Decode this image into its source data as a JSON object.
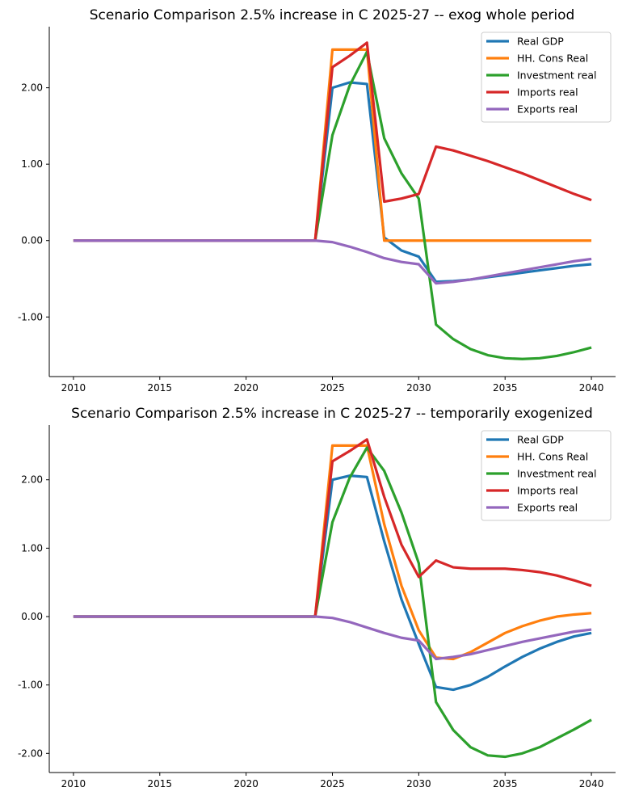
{
  "chart_data": [
    {
      "type": "line",
      "title": "Scenario Comparison 2.5% increase in C 2025-27 -- exog whole period",
      "x": [
        2010,
        2011,
        2012,
        2013,
        2014,
        2015,
        2016,
        2017,
        2018,
        2019,
        2020,
        2021,
        2022,
        2023,
        2024,
        2025,
        2026,
        2027,
        2028,
        2029,
        2030,
        2031,
        2032,
        2033,
        2034,
        2035,
        2036,
        2037,
        2038,
        2039,
        2040
      ],
      "xticks": [
        2010,
        2015,
        2020,
        2025,
        2030,
        2035,
        2040
      ],
      "xtick_labels": [
        "2010",
        "2015",
        "2020",
        "2025",
        "2030",
        "2035",
        "2040"
      ],
      "yticks": [
        -1,
        0,
        1,
        2
      ],
      "ytick_labels": [
        "-1.00",
        "0.00",
        "1.00",
        "2.00"
      ],
      "xlim": [
        2008.6,
        2041.4
      ],
      "ylim": [
        -1.78,
        2.8
      ],
      "grid": false,
      "legend_position": "top-right",
      "series": [
        {
          "name": "Real GDP",
          "color": "#1f77b4",
          "values": [
            0,
            0,
            0,
            0,
            0,
            0,
            0,
            0,
            0,
            0,
            0,
            0,
            0,
            0,
            0,
            2.0,
            2.07,
            2.05,
            0.04,
            -0.13,
            -0.21,
            -0.54,
            -0.53,
            -0.51,
            -0.48,
            -0.45,
            -0.42,
            -0.39,
            -0.36,
            -0.33,
            -0.31
          ]
        },
        {
          "name": "HH. Cons Real",
          "color": "#ff7f0e",
          "values": [
            0,
            0,
            0,
            0,
            0,
            0,
            0,
            0,
            0,
            0,
            0,
            0,
            0,
            0,
            0,
            2.5,
            2.5,
            2.5,
            0,
            0,
            0,
            0,
            0,
            0,
            0,
            0,
            0,
            0,
            0,
            0,
            0
          ]
        },
        {
          "name": "Investment real",
          "color": "#2ca02c",
          "values": [
            0,
            0,
            0,
            0,
            0,
            0,
            0,
            0,
            0,
            0,
            0,
            0,
            0,
            0,
            0,
            1.38,
            2.03,
            2.47,
            1.34,
            0.88,
            0.55,
            -1.1,
            -1.29,
            -1.42,
            -1.5,
            -1.54,
            -1.55,
            -1.54,
            -1.51,
            -1.46,
            -1.4
          ]
        },
        {
          "name": "Imports real",
          "color": "#d62728",
          "values": [
            0,
            0,
            0,
            0,
            0,
            0,
            0,
            0,
            0,
            0,
            0,
            0,
            0,
            0,
            0,
            2.27,
            2.42,
            2.59,
            0.51,
            0.55,
            0.61,
            1.23,
            1.18,
            1.11,
            1.04,
            0.96,
            0.88,
            0.79,
            0.7,
            0.61,
            0.53
          ]
        },
        {
          "name": "Exports real",
          "color": "#9467bd",
          "values": [
            0,
            0,
            0,
            0,
            0,
            0,
            0,
            0,
            0,
            0,
            0,
            0,
            0,
            0,
            0,
            -0.02,
            -0.08,
            -0.15,
            -0.23,
            -0.28,
            -0.31,
            -0.56,
            -0.54,
            -0.51,
            -0.47,
            -0.43,
            -0.39,
            -0.35,
            -0.31,
            -0.27,
            -0.24
          ]
        }
      ]
    },
    {
      "type": "line",
      "title": "Scenario Comparison 2.5% increase in C 2025-27 -- temporarily exogenized",
      "x": [
        2010,
        2011,
        2012,
        2013,
        2014,
        2015,
        2016,
        2017,
        2018,
        2019,
        2020,
        2021,
        2022,
        2023,
        2024,
        2025,
        2026,
        2027,
        2028,
        2029,
        2030,
        2031,
        2032,
        2033,
        2034,
        2035,
        2036,
        2037,
        2038,
        2039,
        2040
      ],
      "xticks": [
        2010,
        2015,
        2020,
        2025,
        2030,
        2035,
        2040
      ],
      "xtick_labels": [
        "2010",
        "2015",
        "2020",
        "2025",
        "2030",
        "2035",
        "2040"
      ],
      "yticks": [
        -2,
        -1,
        0,
        1,
        2
      ],
      "ytick_labels": [
        "-2.00",
        "-1.00",
        "0.00",
        "1.00",
        "2.00"
      ],
      "xlim": [
        2008.6,
        2041.4
      ],
      "ylim": [
        -2.28,
        2.8
      ],
      "grid": false,
      "legend_position": "top-right",
      "series": [
        {
          "name": "Real GDP",
          "color": "#1f77b4",
          "values": [
            0,
            0,
            0,
            0,
            0,
            0,
            0,
            0,
            0,
            0,
            0,
            0,
            0,
            0,
            0,
            2.0,
            2.06,
            2.04,
            1.1,
            0.25,
            -0.4,
            -1.03,
            -1.07,
            -1.0,
            -0.88,
            -0.73,
            -0.59,
            -0.47,
            -0.37,
            -0.29,
            -0.24
          ]
        },
        {
          "name": "HH. Cons Real",
          "color": "#ff7f0e",
          "values": [
            0,
            0,
            0,
            0,
            0,
            0,
            0,
            0,
            0,
            0,
            0,
            0,
            0,
            0,
            0,
            2.5,
            2.5,
            2.5,
            1.35,
            0.45,
            -0.2,
            -0.6,
            -0.62,
            -0.52,
            -0.38,
            -0.24,
            -0.14,
            -0.06,
            0.0,
            0.03,
            0.05
          ]
        },
        {
          "name": "Investment real",
          "color": "#2ca02c",
          "values": [
            0,
            0,
            0,
            0,
            0,
            0,
            0,
            0,
            0,
            0,
            0,
            0,
            0,
            0,
            0,
            1.38,
            2.03,
            2.47,
            2.13,
            1.52,
            0.78,
            -1.25,
            -1.66,
            -1.91,
            -2.03,
            -2.05,
            -2.0,
            -1.91,
            -1.78,
            -1.65,
            -1.51
          ]
        },
        {
          "name": "Imports real",
          "color": "#d62728",
          "values": [
            0,
            0,
            0,
            0,
            0,
            0,
            0,
            0,
            0,
            0,
            0,
            0,
            0,
            0,
            0,
            2.27,
            2.42,
            2.59,
            1.75,
            1.05,
            0.58,
            0.82,
            0.72,
            0.7,
            0.7,
            0.7,
            0.68,
            0.65,
            0.6,
            0.53,
            0.45
          ]
        },
        {
          "name": "Exports real",
          "color": "#9467bd",
          "values": [
            0,
            0,
            0,
            0,
            0,
            0,
            0,
            0,
            0,
            0,
            0,
            0,
            0,
            0,
            0,
            -0.02,
            -0.08,
            -0.16,
            -0.24,
            -0.31,
            -0.35,
            -0.62,
            -0.59,
            -0.55,
            -0.49,
            -0.43,
            -0.37,
            -0.32,
            -0.27,
            -0.22,
            -0.19
          ]
        }
      ]
    }
  ]
}
